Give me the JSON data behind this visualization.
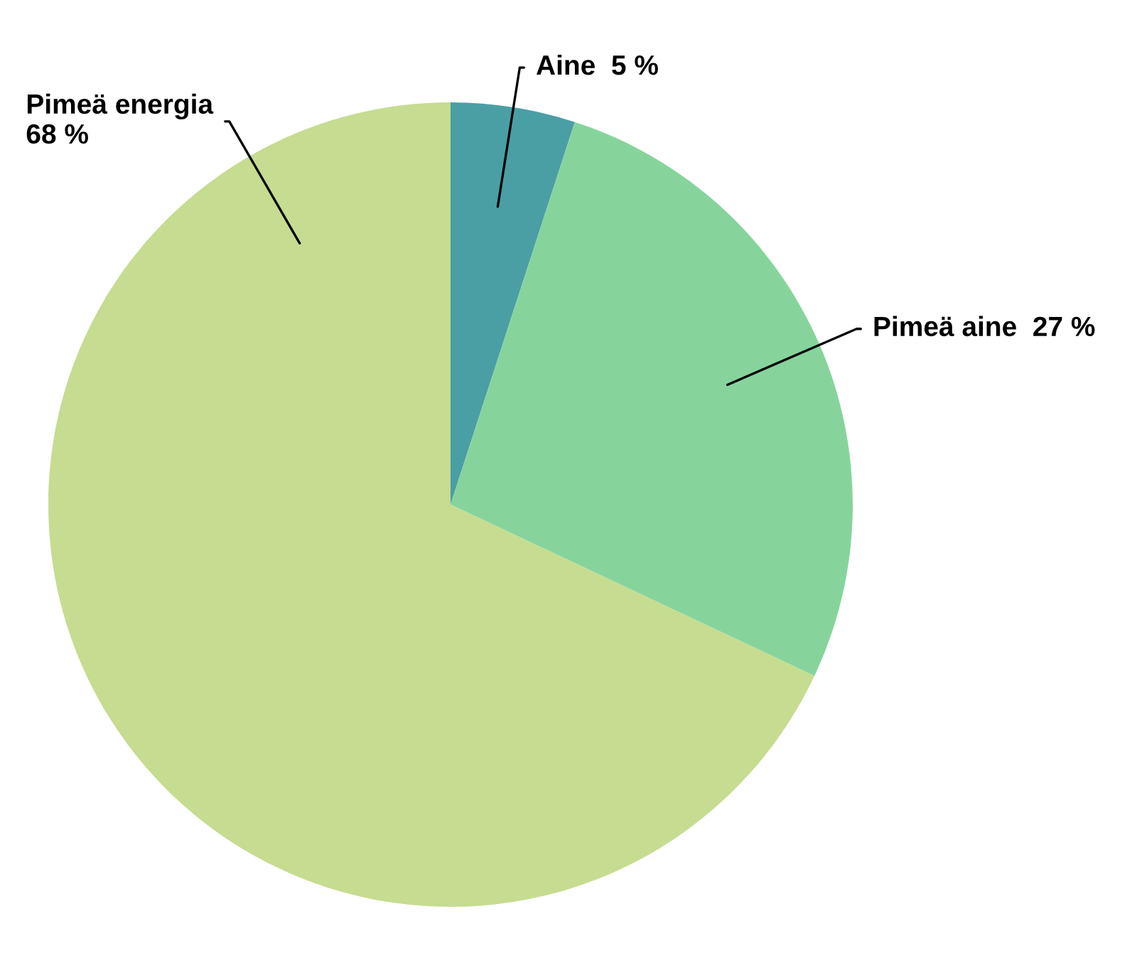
{
  "chart_data": {
    "type": "pie",
    "categories": [
      "Aine",
      "Pimeä aine",
      "Pimeä energia"
    ],
    "values": [
      5,
      27,
      68
    ],
    "value_labels": [
      "5 %",
      "27 %",
      "68 %"
    ],
    "colors": [
      "#4a9fa5",
      "#86d49c",
      "#c6dc91"
    ],
    "legend": false
  }
}
